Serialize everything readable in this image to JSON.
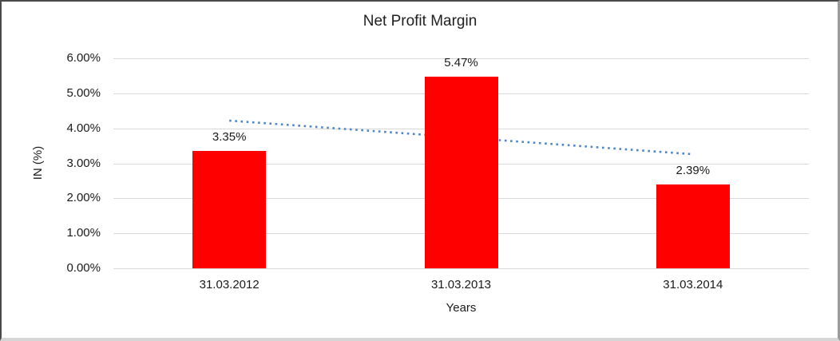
{
  "chart_data": {
    "type": "bar",
    "title": "Net Profit Margin",
    "xlabel": "Years",
    "ylabel": "IN (%)",
    "categories": [
      "31.03.2012",
      "31.03.2013",
      "31.03.2014"
    ],
    "values": [
      3.35,
      5.47,
      2.39
    ],
    "data_labels": [
      "3.35%",
      "5.47%",
      "2.39%"
    ],
    "y_ticks": [
      "0.00%",
      "1.00%",
      "2.00%",
      "3.00%",
      "4.00%",
      "5.00%",
      "6.00%"
    ],
    "ylim": [
      0,
      6
    ],
    "grid": true,
    "legend": "none",
    "bar_color": "#ff0000",
    "gridline_color": "#d9d9d9",
    "trendline": {
      "type": "linear",
      "style": "dotted",
      "color": "#4e86c6",
      "start_value": 4.22,
      "end_value": 3.26
    }
  }
}
